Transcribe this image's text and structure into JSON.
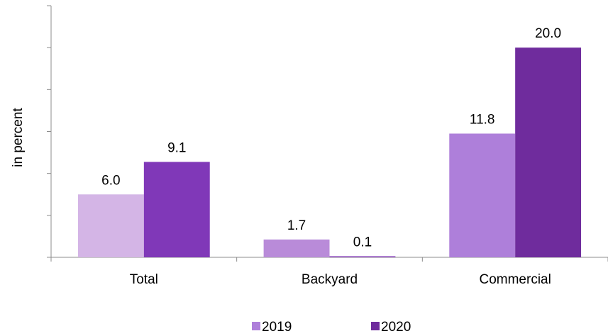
{
  "chart_data": {
    "type": "bar",
    "categories": [
      "Total",
      "Backyard",
      "Commercial"
    ],
    "series": [
      {
        "name": "2019",
        "values": [
          6.0,
          1.7,
          11.8
        ],
        "colors": [
          "#d4b5e6",
          "#b98bd9",
          "#ae7fda"
        ]
      },
      {
        "name": "2020",
        "values": [
          9.1,
          0.1,
          20.0
        ],
        "colors": [
          "#8038b8",
          "#7f35b6",
          "#6f2c9d"
        ]
      }
    ],
    "data_labels": [
      [
        "6.0",
        "1.7",
        "11.8"
      ],
      [
        "9.1",
        "0.1",
        "20.0"
      ]
    ],
    "ylabel": "in percent",
    "ylim": [
      0,
      24
    ],
    "y_tick_step": 4,
    "y_tick_labels_shown": false,
    "grid": false,
    "legend": "bottom"
  }
}
